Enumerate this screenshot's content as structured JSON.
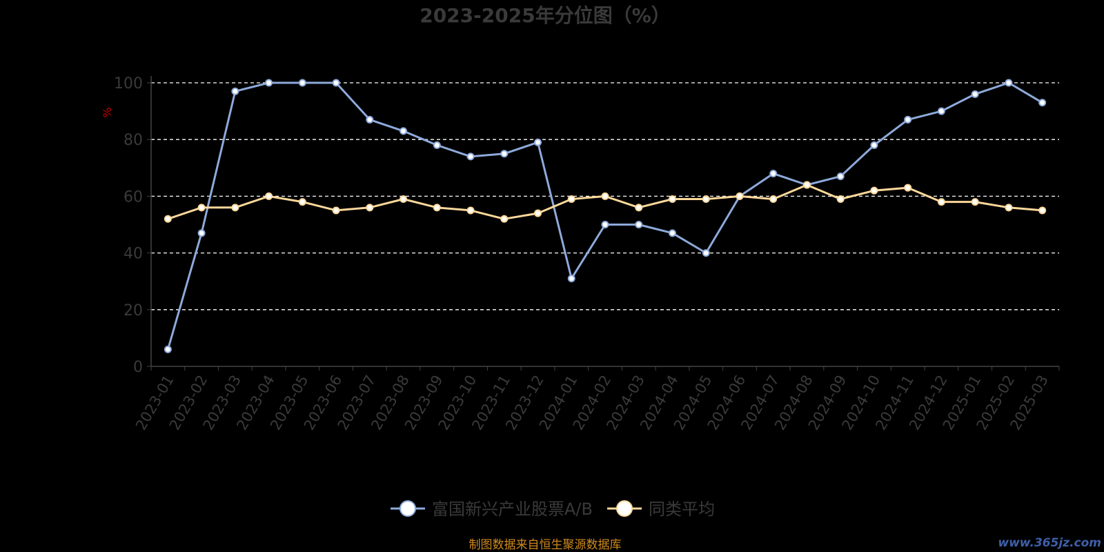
{
  "chart_data": {
    "type": "line",
    "title": "2023-2025年分位图（%）",
    "ylabel": "%",
    "xlabel": "",
    "ylim": [
      0,
      100
    ],
    "yticks": [
      0,
      20,
      40,
      60,
      80,
      100
    ],
    "grid": true,
    "legend_position": "bottom-center",
    "categories": [
      "2023-01",
      "2023-02",
      "2023-03",
      "2023-04",
      "2023-05",
      "2023-06",
      "2023-07",
      "2023-08",
      "2023-09",
      "2023-10",
      "2023-11",
      "2023-12",
      "2024-01",
      "2024-02",
      "2024-03",
      "2024-04",
      "2024-05",
      "2024-06",
      "2024-07",
      "2024-08",
      "2024-09",
      "2024-10",
      "2024-11",
      "2024-12",
      "2025-01",
      "2025-02",
      "2025-03"
    ],
    "series": [
      {
        "name": "富国新兴产业股票A/B",
        "color": "#8eaadb",
        "values": [
          6,
          47,
          97,
          100,
          100,
          100,
          87,
          83,
          78,
          74,
          75,
          79,
          31,
          50,
          50,
          47,
          40,
          60,
          68,
          64,
          67,
          78,
          87,
          90,
          96,
          100,
          93
        ]
      },
      {
        "name": "同类平均",
        "color": "#fcd89a",
        "values": [
          52,
          56,
          56,
          60,
          58,
          55,
          56,
          59,
          56,
          55,
          52,
          54,
          59,
          60,
          56,
          59,
          59,
          60,
          59,
          64,
          59,
          62,
          63,
          58,
          58,
          56,
          55
        ]
      }
    ]
  },
  "source_text": "制图数据来自恒生聚源数据库",
  "watermark_text": "www.365jz.com"
}
